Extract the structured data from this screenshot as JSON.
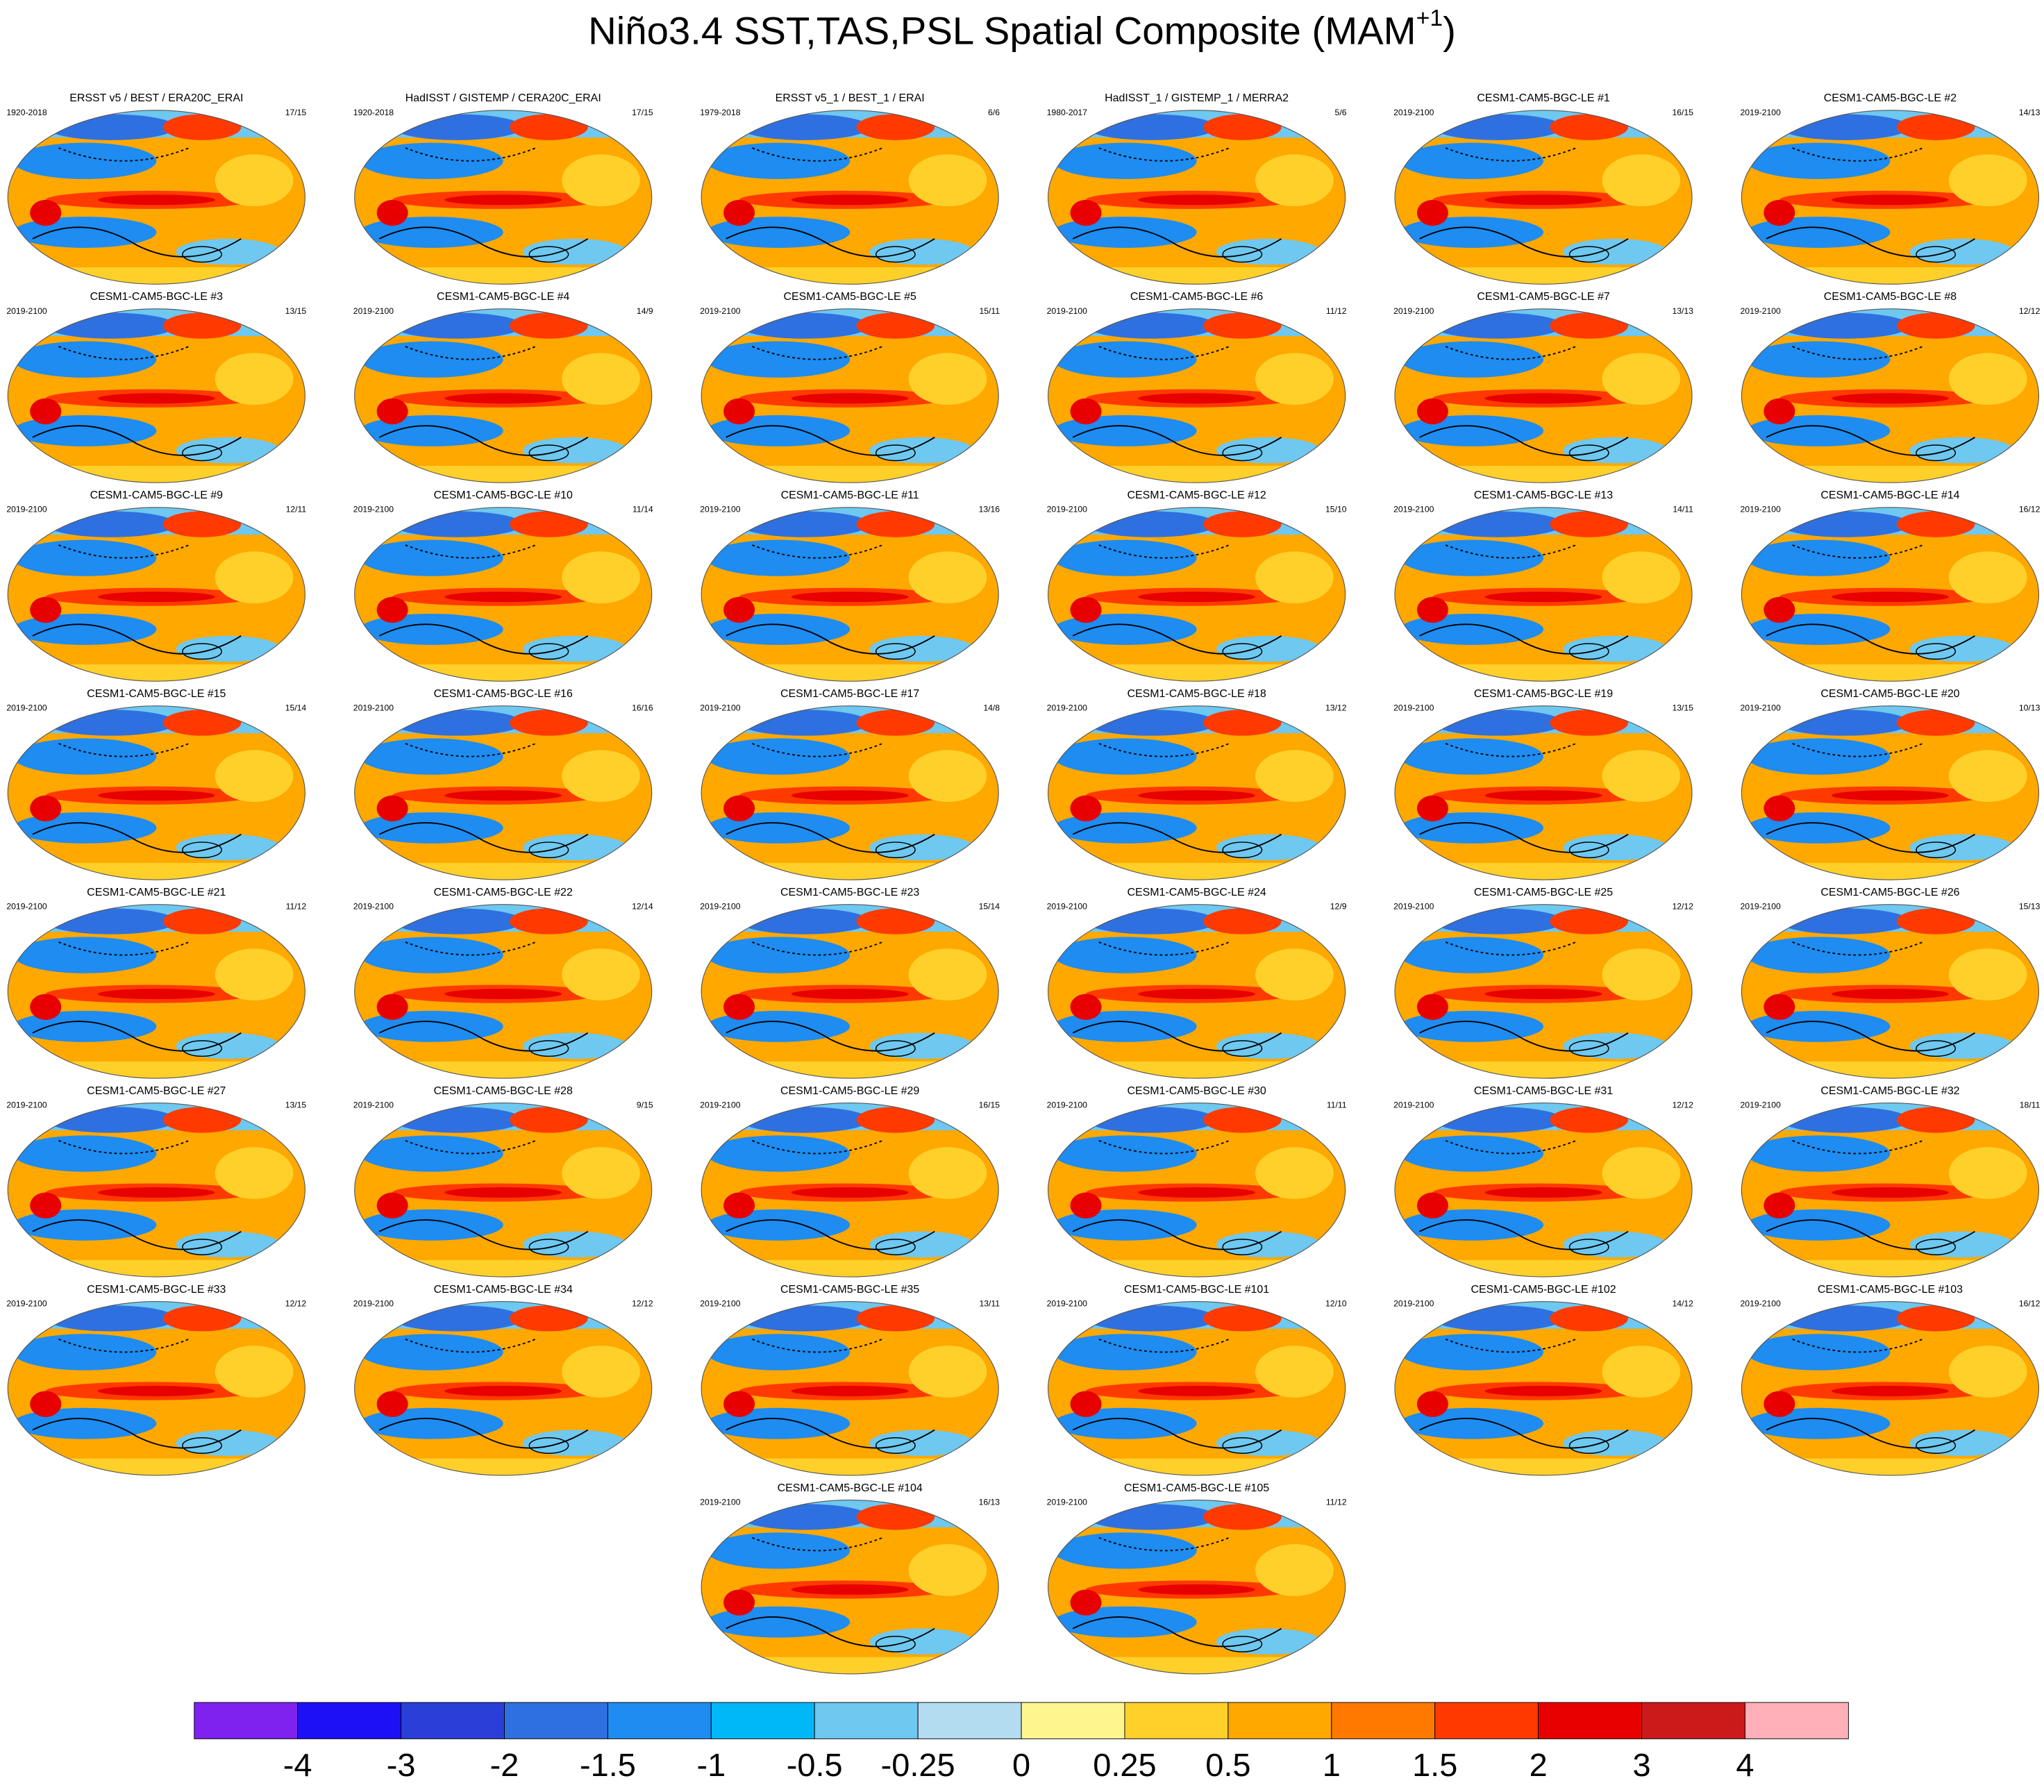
{
  "title": {
    "main": "Niño3.4 SST,TAS,PSL Spatial Composite (MAM",
    "sup": "+1",
    "end": ")"
  },
  "panels": [
    {
      "title": "ERSST v5 / BEST / ERA20C_ERAI",
      "left": "1920-2018",
      "right": "17/15"
    },
    {
      "title": "HadISST / GISTEMP / CERA20C_ERAI",
      "left": "1920-2018",
      "right": "17/15"
    },
    {
      "title": "ERSST v5_1 / BEST_1 / ERAI",
      "left": "1979-2018",
      "right": "6/6"
    },
    {
      "title": "HadISST_1 / GISTEMP_1 / MERRA2",
      "left": "1980-2017",
      "right": "5/6"
    },
    {
      "title": "CESM1-CAM5-BGC-LE #1",
      "left": "2019-2100",
      "right": "16/15"
    },
    {
      "title": "CESM1-CAM5-BGC-LE #2",
      "left": "2019-2100",
      "right": "14/13"
    },
    {
      "title": "CESM1-CAM5-BGC-LE #3",
      "left": "2019-2100",
      "right": "13/15"
    },
    {
      "title": "CESM1-CAM5-BGC-LE #4",
      "left": "2019-2100",
      "right": "14/9"
    },
    {
      "title": "CESM1-CAM5-BGC-LE #5",
      "left": "2019-2100",
      "right": "15/11"
    },
    {
      "title": "CESM1-CAM5-BGC-LE #6",
      "left": "2019-2100",
      "right": "11/12"
    },
    {
      "title": "CESM1-CAM5-BGC-LE #7",
      "left": "2019-2100",
      "right": "13/13"
    },
    {
      "title": "CESM1-CAM5-BGC-LE #8",
      "left": "2019-2100",
      "right": "12/12"
    },
    {
      "title": "CESM1-CAM5-BGC-LE #9",
      "left": "2019-2100",
      "right": "12/11"
    },
    {
      "title": "CESM1-CAM5-BGC-LE #10",
      "left": "2019-2100",
      "right": "11/14"
    },
    {
      "title": "CESM1-CAM5-BGC-LE #11",
      "left": "2019-2100",
      "right": "13/16"
    },
    {
      "title": "CESM1-CAM5-BGC-LE #12",
      "left": "2019-2100",
      "right": "15/10"
    },
    {
      "title": "CESM1-CAM5-BGC-LE #13",
      "left": "2019-2100",
      "right": "14/11"
    },
    {
      "title": "CESM1-CAM5-BGC-LE #14",
      "left": "2019-2100",
      "right": "16/12"
    },
    {
      "title": "CESM1-CAM5-BGC-LE #15",
      "left": "2019-2100",
      "right": "15/14"
    },
    {
      "title": "CESM1-CAM5-BGC-LE #16",
      "left": "2019-2100",
      "right": "16/16"
    },
    {
      "title": "CESM1-CAM5-BGC-LE #17",
      "left": "2019-2100",
      "right": "14/8"
    },
    {
      "title": "CESM1-CAM5-BGC-LE #18",
      "left": "2019-2100",
      "right": "13/12"
    },
    {
      "title": "CESM1-CAM5-BGC-LE #19",
      "left": "2019-2100",
      "right": "13/15"
    },
    {
      "title": "CESM1-CAM5-BGC-LE #20",
      "left": "2019-2100",
      "right": "10/13"
    },
    {
      "title": "CESM1-CAM5-BGC-LE #21",
      "left": "2019-2100",
      "right": "11/12"
    },
    {
      "title": "CESM1-CAM5-BGC-LE #22",
      "left": "2019-2100",
      "right": "12/14"
    },
    {
      "title": "CESM1-CAM5-BGC-LE #23",
      "left": "2019-2100",
      "right": "15/14"
    },
    {
      "title": "CESM1-CAM5-BGC-LE #24",
      "left": "2019-2100",
      "right": "12/9"
    },
    {
      "title": "CESM1-CAM5-BGC-LE #25",
      "left": "2019-2100",
      "right": "12/12"
    },
    {
      "title": "CESM1-CAM5-BGC-LE #26",
      "left": "2019-2100",
      "right": "15/13"
    },
    {
      "title": "CESM1-CAM5-BGC-LE #27",
      "left": "2019-2100",
      "right": "13/15"
    },
    {
      "title": "CESM1-CAM5-BGC-LE #28",
      "left": "2019-2100",
      "right": "9/15"
    },
    {
      "title": "CESM1-CAM5-BGC-LE #29",
      "left": "2019-2100",
      "right": "16/15"
    },
    {
      "title": "CESM1-CAM5-BGC-LE #30",
      "left": "2019-2100",
      "right": "11/11"
    },
    {
      "title": "CESM1-CAM5-BGC-LE #31",
      "left": "2019-2100",
      "right": "12/12"
    },
    {
      "title": "CESM1-CAM5-BGC-LE #32",
      "left": "2019-2100",
      "right": "18/11"
    },
    {
      "title": "CESM1-CAM5-BGC-LE #33",
      "left": "2019-2100",
      "right": "12/12"
    },
    {
      "title": "CESM1-CAM5-BGC-LE #34",
      "left": "2019-2100",
      "right": "12/12"
    },
    {
      "title": "CESM1-CAM5-BGC-LE #35",
      "left": "2019-2100",
      "right": "13/11"
    },
    {
      "title": "CESM1-CAM5-BGC-LE #101",
      "left": "2019-2100",
      "right": "12/10"
    },
    {
      "title": "CESM1-CAM5-BGC-LE #102",
      "left": "2019-2100",
      "right": "14/12"
    },
    {
      "title": "CESM1-CAM5-BGC-LE #103",
      "left": "2019-2100",
      "right": "16/12"
    },
    {
      "title": "CESM1-CAM5-BGC-LE #104",
      "left": "2019-2100",
      "right": "16/13"
    },
    {
      "title": "CESM1-CAM5-BGC-LE #105",
      "left": "2019-2100",
      "right": "11/12"
    }
  ],
  "colorbar": {
    "colors": [
      "#7f22f0",
      "#1e10f5",
      "#2a3fd8",
      "#2f70e0",
      "#1e8cf0",
      "#00b8f8",
      "#6ec8f0",
      "#b4dcf0",
      "#fff68f",
      "#ffd02a",
      "#ffa800",
      "#ff7800",
      "#ff3a00",
      "#e80000",
      "#cc1a1a",
      "#ffb0b8"
    ],
    "labels": [
      -4,
      -3,
      -2,
      -1.5,
      -1,
      -0.5,
      -0.25,
      0,
      0.25,
      0.5,
      1,
      1.5,
      2,
      3,
      4
    ]
  }
}
